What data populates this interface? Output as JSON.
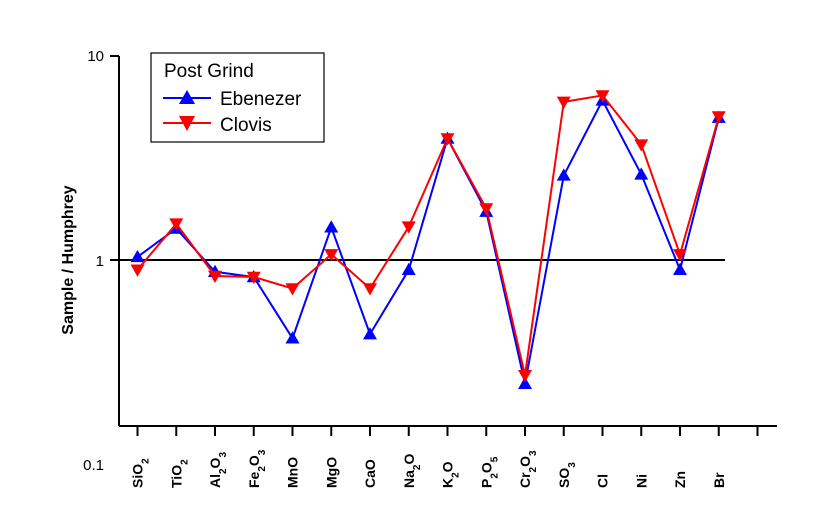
{
  "chart_data": {
    "type": "line",
    "title": "",
    "xlabel": "",
    "ylabel": "Sample / Humphrey",
    "yscale": "log",
    "ylim": [
      0.1,
      10
    ],
    "yticks": [
      "10",
      "1",
      "0.1"
    ],
    "reference_line": 1,
    "categories": [
      {
        "name": "SiO2",
        "parts": [
          {
            "t": "SiO"
          },
          {
            "t": "2",
            "sub": true
          }
        ]
      },
      {
        "name": "TiO2",
        "parts": [
          {
            "t": "TiO"
          },
          {
            "t": "2",
            "sub": true
          }
        ]
      },
      {
        "name": "Al2O3",
        "parts": [
          {
            "t": "Al"
          },
          {
            "t": "2",
            "sub": true
          },
          {
            "t": "O"
          },
          {
            "t": "3",
            "sub": true
          }
        ]
      },
      {
        "name": "Fe2O3",
        "parts": [
          {
            "t": "Fe"
          },
          {
            "t": "2",
            "sub": true
          },
          {
            "t": "O"
          },
          {
            "t": "3",
            "sub": true
          }
        ]
      },
      {
        "name": "MnO",
        "parts": [
          {
            "t": "MnO"
          }
        ]
      },
      {
        "name": "MgO",
        "parts": [
          {
            "t": "MgO"
          }
        ]
      },
      {
        "name": "CaO",
        "parts": [
          {
            "t": "CaO"
          }
        ]
      },
      {
        "name": "Na2O",
        "parts": [
          {
            "t": "Na"
          },
          {
            "t": "2",
            "sub": true
          },
          {
            "t": "O"
          }
        ]
      },
      {
        "name": "K2O",
        "parts": [
          {
            "t": "K"
          },
          {
            "t": "2",
            "sub": true
          },
          {
            "t": "O"
          }
        ]
      },
      {
        "name": "P2O5",
        "parts": [
          {
            "t": "P"
          },
          {
            "t": "2",
            "sub": true
          },
          {
            "t": "O"
          },
          {
            "t": "5",
            "sub": true
          }
        ]
      },
      {
        "name": "Cr2O3",
        "parts": [
          {
            "t": "Cr"
          },
          {
            "t": "2",
            "sub": true
          },
          {
            "t": "O"
          },
          {
            "t": "3",
            "sub": true
          }
        ]
      },
      {
        "name": "SO3",
        "parts": [
          {
            "t": "SO"
          },
          {
            "t": "3",
            "sub": true
          }
        ]
      },
      {
        "name": "Cl",
        "parts": [
          {
            "t": "Cl"
          }
        ]
      },
      {
        "name": "Ni",
        "parts": [
          {
            "t": "Ni"
          }
        ]
      },
      {
        "name": "Zn",
        "parts": [
          {
            "t": "Zn"
          }
        ]
      },
      {
        "name": "Br",
        "parts": [
          {
            "t": "Br"
          }
        ]
      }
    ],
    "legend": {
      "title": "Post Grind",
      "position": "top-left"
    },
    "series": [
      {
        "name": "Ebenezer",
        "color": "#0000ff",
        "marker": "triangle-up",
        "values": [
          1.03,
          1.42,
          0.87,
          0.82,
          0.41,
          1.44,
          0.43,
          0.89,
          3.93,
          1.72,
          0.245,
          2.59,
          6.05,
          2.62,
          0.89,
          4.98
        ]
      },
      {
        "name": "Clovis",
        "color": "#ff0000",
        "marker": "triangle-down",
        "values": [
          0.89,
          1.5,
          0.83,
          0.82,
          0.72,
          1.06,
          0.72,
          1.45,
          3.93,
          1.78,
          0.27,
          5.95,
          6.4,
          3.67,
          1.06,
          5.04
        ]
      }
    ]
  }
}
